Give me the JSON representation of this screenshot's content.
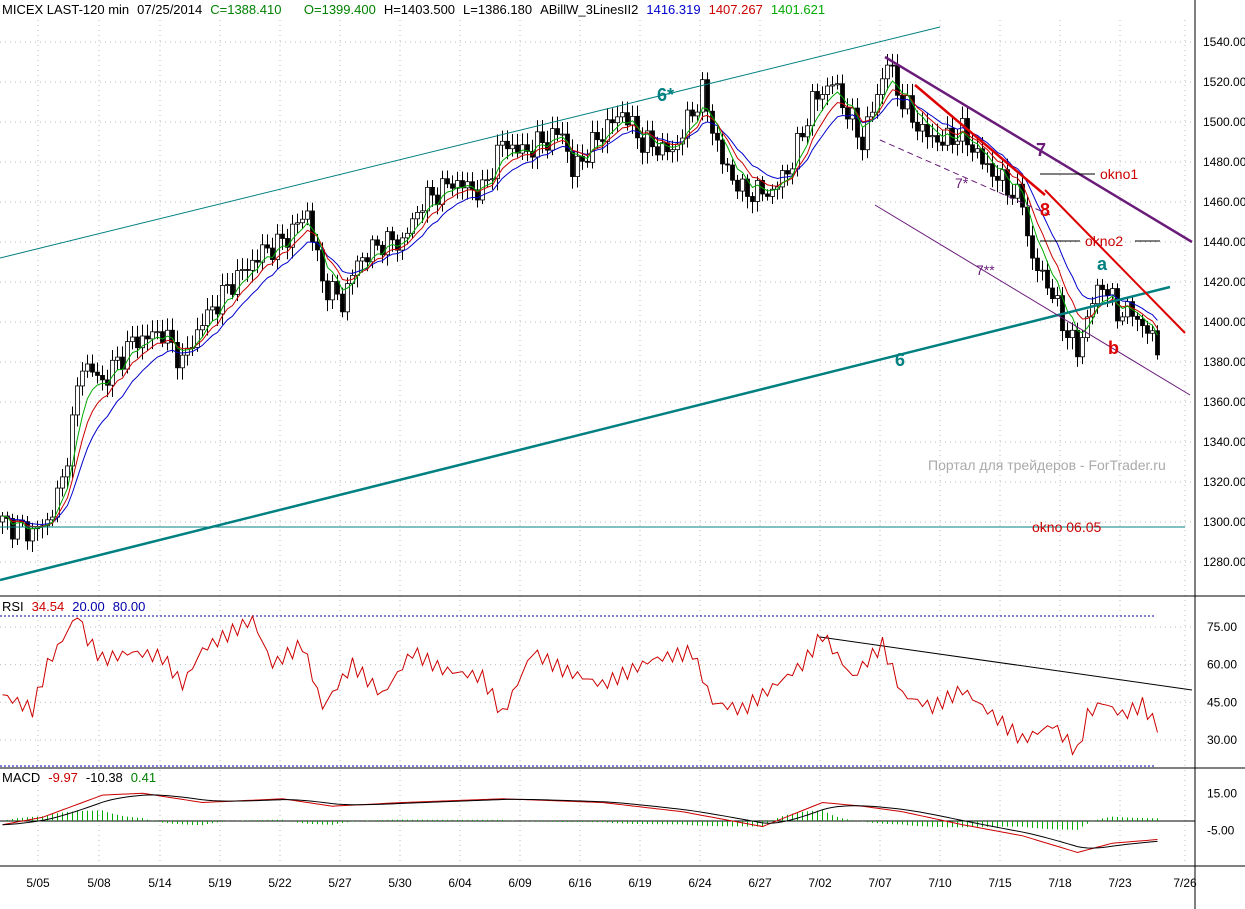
{
  "header": {
    "symbol": "MICEX LAST-120 min",
    "date": "07/25/2014",
    "close": "C=1388.410",
    "open": "O=1399.400",
    "high": "H=1403.500",
    "low": "L=1386.180",
    "indicator": "ABillW_3LinesII2",
    "v1": "1416.319",
    "v2": "1407.267",
    "v3": "1401.621"
  },
  "rsi_header": {
    "label": "RSI",
    "value": "34.54",
    "low": "20.00",
    "high": "80.00"
  },
  "macd_header": {
    "label": "MACD",
    "macd": "-9.97",
    "signal": "-10.38",
    "hist": "0.41"
  },
  "colors": {
    "up": "#000000",
    "ma_blue": "#0000cc",
    "ma_red": "#cc0000",
    "ma_green": "#00aa00",
    "teal": "#008080",
    "purple": "#6a1b7a",
    "red": "#dd0000"
  },
  "annotations": {
    "wave6star": "6*",
    "wave6": "6",
    "wave7": "7",
    "wave8": "8",
    "wave7s": "7*",
    "wave7ss": "7**",
    "a": "a",
    "b": "b",
    "okno1": "okno1",
    "okno2": "okno2",
    "okno0605": "okno 06.05"
  },
  "watermark": "Портал для трейдеров - ForTrader.ru",
  "chart_data": [
    {
      "type": "candlestick",
      "title": "MICEX LAST-120 min",
      "ylim": [
        1270,
        1545
      ],
      "yticks": [
        "1540.00",
        "1520.00",
        "1500.00",
        "1480.00",
        "1460.00",
        "1440.00",
        "1420.00",
        "1400.00",
        "1380.00",
        "1360.00",
        "1340.00",
        "1320.00",
        "1300.00",
        "1280.00"
      ],
      "ytick_values": [
        1540,
        1520,
        1500,
        1480,
        1460,
        1440,
        1420,
        1400,
        1380,
        1360,
        1340,
        1320,
        1300,
        1280
      ],
      "xticks": [
        "5/05",
        "5/08",
        "5/14",
        "5/19",
        "5/22",
        "5/27",
        "5/30",
        "6/04",
        "6/09",
        "6/16",
        "6/19",
        "6/24",
        "6/27",
        "7/02",
        "7/07",
        "7/10",
        "7/15",
        "7/18",
        "7/23",
        "7/26"
      ],
      "close_path": [
        [
          0,
          1300
        ],
        [
          6,
          1295
        ],
        [
          9,
          1300
        ],
        [
          12,
          1320
        ],
        [
          16,
          1380
        ],
        [
          20,
          1370
        ],
        [
          26,
          1390
        ],
        [
          32,
          1395
        ],
        [
          36,
          1380
        ],
        [
          40,
          1400
        ],
        [
          46,
          1420
        ],
        [
          52,
          1435
        ],
        [
          56,
          1440
        ],
        [
          61,
          1455
        ],
        [
          64,
          1420
        ],
        [
          68,
          1410
        ],
        [
          71,
          1430
        ],
        [
          76,
          1440
        ],
        [
          80,
          1440
        ],
        [
          84,
          1460
        ],
        [
          90,
          1470
        ],
        [
          96,
          1465
        ],
        [
          100,
          1490
        ],
        [
          104,
          1485
        ],
        [
          112,
          1495
        ],
        [
          114,
          1475
        ],
        [
          120,
          1495
        ],
        [
          124,
          1505
        ],
        [
          128,
          1490
        ],
        [
          134,
          1485
        ],
        [
          140,
          1515
        ],
        [
          144,
          1480
        ],
        [
          148,
          1465
        ],
        [
          154,
          1465
        ],
        [
          158,
          1480
        ],
        [
          162,
          1510
        ],
        [
          166,
          1520
        ],
        [
          170,
          1500
        ],
        [
          172,
          1490
        ],
        [
          177,
          1530
        ],
        [
          180,
          1510
        ],
        [
          184,
          1495
        ],
        [
          188,
          1490
        ],
        [
          192,
          1495
        ],
        [
          196,
          1480
        ],
        [
          200,
          1470
        ],
        [
          204,
          1460
        ],
        [
          206,
          1430
        ],
        [
          209,
          1420
        ],
        [
          212,
          1400
        ],
        [
          215,
          1385
        ],
        [
          218,
          1410
        ],
        [
          220,
          1420
        ],
        [
          223,
          1405
        ],
        [
          226,
          1405
        ],
        [
          229,
          1395
        ],
        [
          231,
          1388
        ]
      ]
    },
    {
      "type": "line",
      "title": "RSI",
      "ylim": [
        15,
        85
      ],
      "yticks": [
        "75.00",
        "60.00",
        "45.00",
        "30.00"
      ],
      "ytick_values": [
        75,
        60,
        45,
        30
      ],
      "values_path": [
        [
          0,
          48
        ],
        [
          6,
          42
        ],
        [
          9,
          60
        ],
        [
          15,
          80
        ],
        [
          17,
          70
        ],
        [
          20,
          62
        ],
        [
          26,
          65
        ],
        [
          32,
          63
        ],
        [
          36,
          52
        ],
        [
          40,
          66
        ],
        [
          50,
          78
        ],
        [
          54,
          60
        ],
        [
          60,
          68
        ],
        [
          64,
          43
        ],
        [
          70,
          60
        ],
        [
          76,
          48
        ],
        [
          82,
          65
        ],
        [
          88,
          58
        ],
        [
          96,
          55
        ],
        [
          100,
          40
        ],
        [
          106,
          65
        ],
        [
          112,
          58
        ],
        [
          120,
          52
        ],
        [
          130,
          62
        ],
        [
          138,
          65
        ],
        [
          142,
          45
        ],
        [
          148,
          42
        ],
        [
          152,
          48
        ],
        [
          160,
          60
        ],
        [
          164,
          72
        ],
        [
          170,
          55
        ],
        [
          176,
          68
        ],
        [
          180,
          48
        ],
        [
          186,
          43
        ],
        [
          192,
          50
        ],
        [
          198,
          40
        ],
        [
          204,
          30
        ],
        [
          210,
          36
        ],
        [
          215,
          25
        ],
        [
          217,
          40
        ],
        [
          220,
          45
        ],
        [
          224,
          40
        ],
        [
          228,
          44
        ],
        [
          231,
          35
        ]
      ]
    },
    {
      "type": "line",
      "title": "MACD",
      "ylim": [
        -12,
        22
      ],
      "yticks": [
        "15.00",
        "-5.00"
      ],
      "ytick_values": [
        15,
        -5
      ],
      "macd_path": [
        [
          0,
          -2
        ],
        [
          8,
          2
        ],
        [
          20,
          14
        ],
        [
          28,
          15
        ],
        [
          40,
          10
        ],
        [
          56,
          12
        ],
        [
          66,
          8
        ],
        [
          80,
          10
        ],
        [
          100,
          12
        ],
        [
          120,
          10
        ],
        [
          136,
          5
        ],
        [
          152,
          -3
        ],
        [
          164,
          10
        ],
        [
          172,
          8
        ],
        [
          180,
          5
        ],
        [
          192,
          -2
        ],
        [
          204,
          -8
        ],
        [
          215,
          -17
        ],
        [
          222,
          -12
        ],
        [
          231,
          -10
        ]
      ]
    }
  ]
}
